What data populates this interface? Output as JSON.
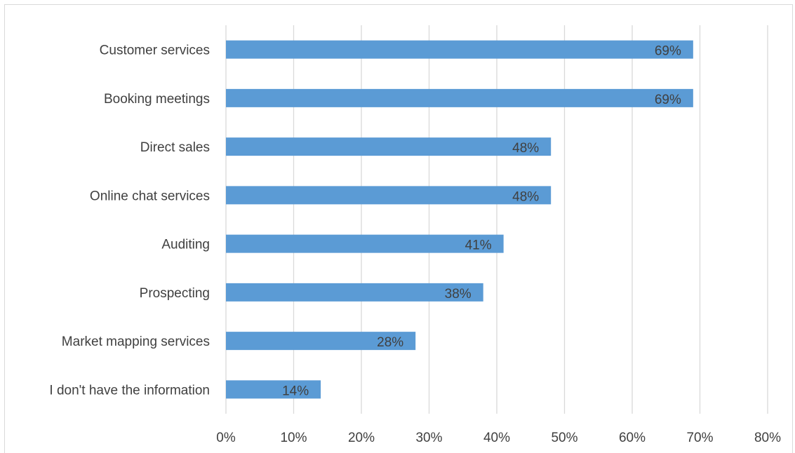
{
  "chart_data": {
    "type": "bar",
    "orientation": "horizontal",
    "categories": [
      "Customer services",
      "Booking meetings",
      "Direct sales",
      "Online chat services",
      "Auditing",
      "Prospecting",
      "Market mapping services",
      "I don't have the information"
    ],
    "values": [
      69,
      69,
      48,
      48,
      41,
      38,
      28,
      14
    ],
    "data_labels": [
      "69%",
      "69%",
      "48%",
      "48%",
      "41%",
      "38%",
      "28%",
      "14%"
    ],
    "x_ticks": [
      "0%",
      "10%",
      "20%",
      "30%",
      "40%",
      "50%",
      "60%",
      "70%",
      "80%"
    ],
    "xlim": [
      0,
      80
    ],
    "title": "",
    "xlabel": "",
    "ylabel": "",
    "grid": "vertical",
    "legend": "none",
    "bar_color": "#5b9bd5",
    "gridline_color": "#d9d9d9",
    "text_color": "#404040"
  }
}
